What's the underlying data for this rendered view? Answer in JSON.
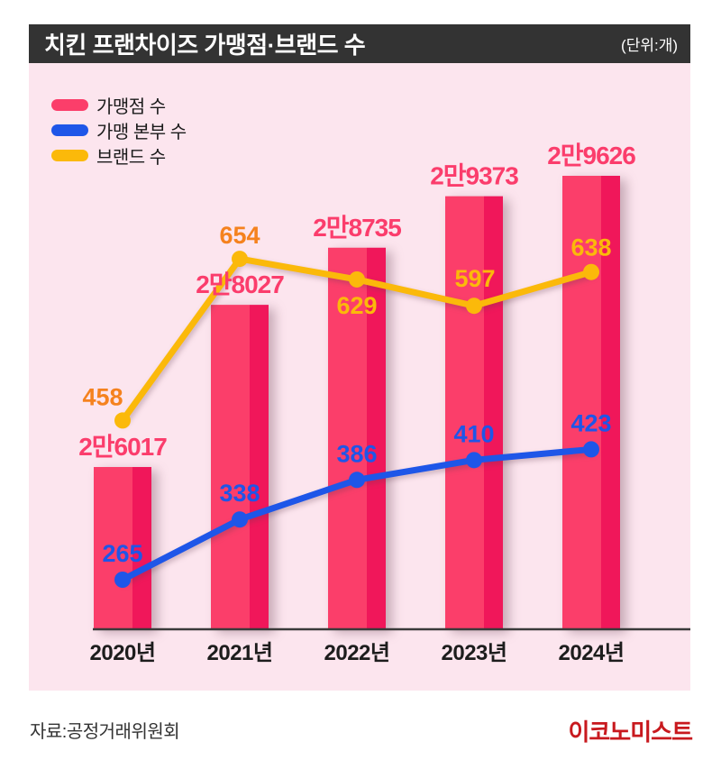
{
  "header": {
    "title": "치킨 프랜차이즈 가맹점·브랜드 수",
    "unit": "(단위:개)"
  },
  "legend": [
    {
      "label": "가맹점 수",
      "color": "#FB3E6A"
    },
    {
      "label": "가맹 본부 수",
      "color": "#1E56E8"
    },
    {
      "label": "브랜드 수",
      "color": "#FBB90A"
    }
  ],
  "colors": {
    "header_bg": "#333333",
    "panel_bg": "#FCE5EE",
    "bar_main": "#FB3E6A",
    "bar_stripe": "#F0175A",
    "bar_label": "#FB3D6C",
    "line_blue": "#1E56E8",
    "line_yellow": "#FBB90A",
    "label_orange": "#F5821E",
    "axis": "#3A3A3A",
    "x_label": "#1D1D1D",
    "logo_red": "#C8191E"
  },
  "footer": {
    "source": "자료:공정거래위원회",
    "logo": "이코노미스트"
  },
  "chart_data": {
    "type": "bar",
    "subtype": "bar-and-line combo",
    "title": "치킨 프랜차이즈 가맹점·브랜드 수",
    "unit": "(단위:개)",
    "categories": [
      "2020년",
      "2021년",
      "2022년",
      "2023년",
      "2024년"
    ],
    "series": [
      {
        "name": "가맹점 수",
        "type": "bar",
        "values": [
          26017,
          28027,
          28735,
          29373,
          29626
        ],
        "labels": [
          "2만6017",
          "2만8027",
          "2만8735",
          "2만9373",
          "2만9626"
        ],
        "color": "#FB3E6A"
      },
      {
        "name": "가맹 본부 수",
        "type": "line",
        "values": [
          265,
          338,
          386,
          410,
          423
        ],
        "labels": [
          "265",
          "338",
          "386",
          "410",
          "423"
        ],
        "color": "#1E56E8"
      },
      {
        "name": "브랜드 수",
        "type": "line",
        "values": [
          458,
          654,
          629,
          597,
          638
        ],
        "labels": [
          "458",
          "654",
          "629",
          "597",
          "638"
        ],
        "color": "#FBB90A",
        "label_colors": [
          "#F5821E",
          "#F5821E",
          "#FBB90A",
          "#FBB90A",
          "#FBB90A"
        ]
      }
    ],
    "legend_position": "top-left",
    "grid": false,
    "source": "자료:공정거래위원회"
  }
}
